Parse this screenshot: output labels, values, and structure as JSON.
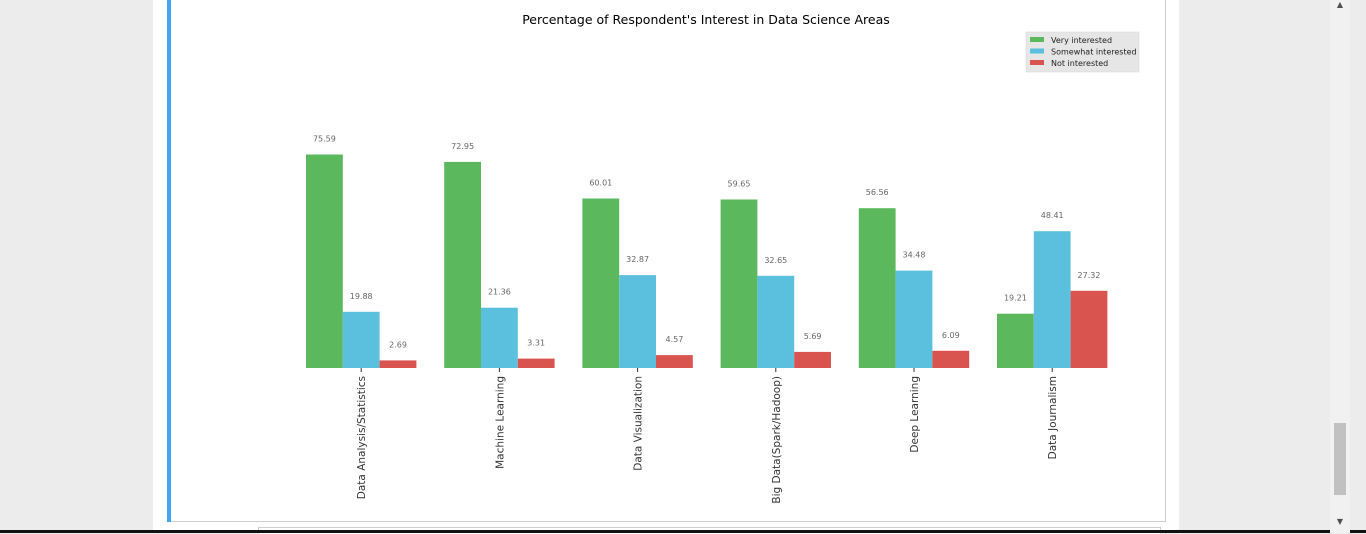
{
  "chart_data": {
    "type": "bar",
    "title": "Percentage of Respondent's Interest in Data Science Areas",
    "xlabel": "",
    "ylabel": "",
    "categories": [
      "Data Analysis/Statistics",
      "Machine Learning",
      "Data Visualization",
      "Big Data(Spark/Hadoop)",
      "Deep Learning",
      "Data Journalism"
    ],
    "series": [
      {
        "name": "Very interested",
        "color": "#5cb85c",
        "values": [
          75.59,
          72.95,
          60.01,
          59.65,
          56.56,
          19.21
        ]
      },
      {
        "name": "Somewhat interested",
        "color": "#5bc0de",
        "values": [
          19.88,
          21.36,
          32.87,
          32.65,
          34.48,
          48.41
        ]
      },
      {
        "name": "Not interested",
        "color": "#d9534f",
        "values": [
          2.69,
          3.31,
          4.57,
          5.69,
          6.09,
          27.32
        ]
      }
    ],
    "ylim": [
      0,
      100
    ],
    "grid": false,
    "legend_position": "top-right",
    "value_labels": true
  },
  "scrollbar": {
    "up_arrow": "▲",
    "down_arrow": "▼"
  }
}
